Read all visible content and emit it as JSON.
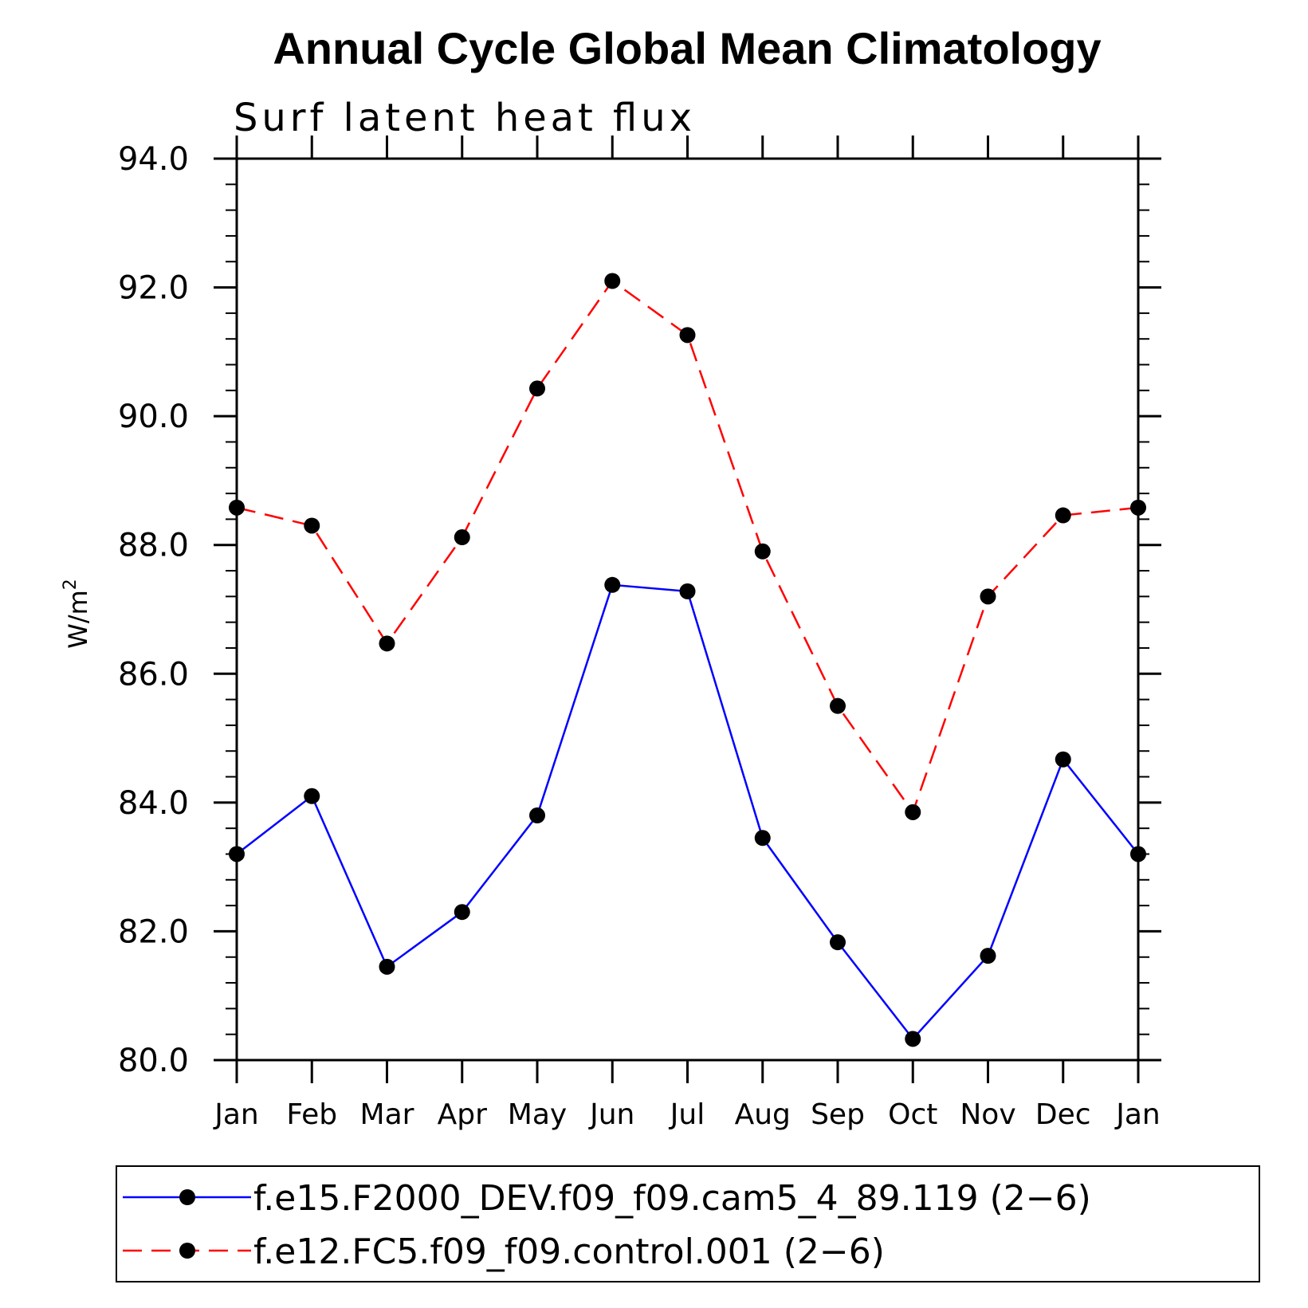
{
  "chart_data": {
    "type": "line",
    "title": "Annual Cycle Global Mean Climatology",
    "subtitle": "Surf latent heat flux",
    "ylabel_base": "W/m",
    "ylabel_sup": "2",
    "xlabel": "",
    "categories": [
      "Jan",
      "Feb",
      "Mar",
      "Apr",
      "May",
      "Jun",
      "Jul",
      "Aug",
      "Sep",
      "Oct",
      "Nov",
      "Dec",
      "Jan"
    ],
    "ylim": [
      80.0,
      94.0
    ],
    "yticks": [
      "80.0",
      "82.0",
      "84.0",
      "86.0",
      "88.0",
      "90.0",
      "92.0",
      "94.0"
    ],
    "grid": false,
    "legend_position": "bottom",
    "series": [
      {
        "name": "f.e15.F2000_DEV.f09_f09.cam5_4_89.119 (2−6)",
        "color": "#0000ff",
        "dash": "solid",
        "marker": "circle",
        "values": [
          83.2,
          84.1,
          81.45,
          82.3,
          83.8,
          87.38,
          87.28,
          83.45,
          81.83,
          80.33,
          81.62,
          84.67,
          83.2
        ]
      },
      {
        "name": "f.e12.FC5.f09_f09.control.001 (2−6)",
        "color": "#ff0000",
        "dash": "dashed",
        "marker": "circle",
        "values": [
          88.58,
          88.3,
          86.47,
          88.12,
          90.43,
          92.1,
          91.26,
          87.9,
          85.5,
          83.85,
          87.2,
          88.46,
          88.58
        ]
      }
    ]
  }
}
